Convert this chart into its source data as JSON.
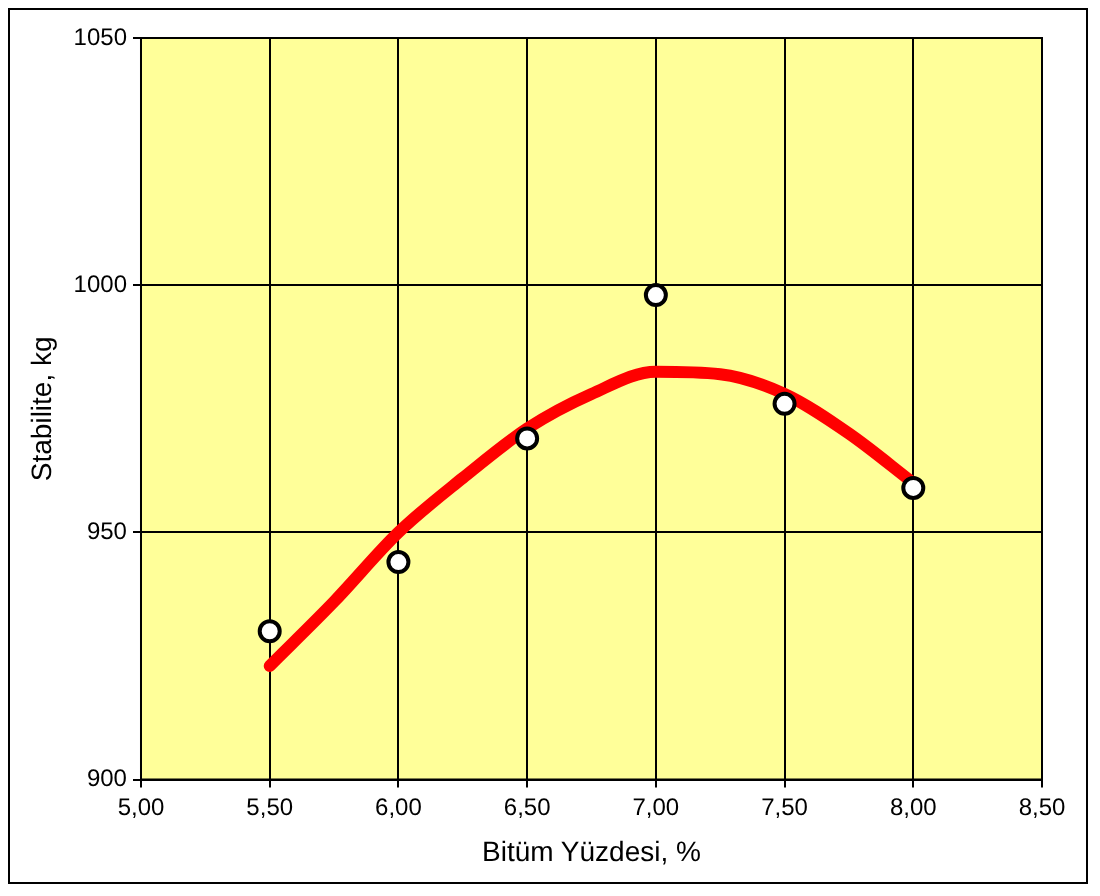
{
  "chart_data": {
    "type": "scatter",
    "xlabel": "Bitüm Yüzdesi, %",
    "ylabel": "Stabilite, kg",
    "xlim": [
      5,
      8.5
    ],
    "xticks": [
      {
        "value": 5,
        "label": "5,00"
      },
      {
        "value": 5.5,
        "label": "5,50"
      },
      {
        "value": 6,
        "label": "6,00"
      },
      {
        "value": 6.5,
        "label": "6,50"
      },
      {
        "value": 7,
        "label": "7,00"
      },
      {
        "value": 7.5,
        "label": "7,50"
      },
      {
        "value": 8,
        "label": "8,00"
      },
      {
        "value": 8.5,
        "label": "8,50"
      }
    ],
    "ylim": [
      900,
      1050
    ],
    "yticks": [
      900,
      950,
      1000,
      1050
    ],
    "grid": true,
    "legend": false,
    "marker": "circle",
    "series": [
      {
        "color": "#000000",
        "x": [
          5.5,
          6,
          6.5,
          7,
          7.5,
          8
        ],
        "values": [
          930,
          944,
          969,
          998,
          976,
          959
        ]
      },
      {
        "type": "line",
        "color": "#ff0000",
        "marker": "none",
        "line_style": "solid",
        "x": [
          5.5,
          5.75,
          6,
          6.25,
          6.5,
          6.75,
          7,
          7.25,
          7.5,
          7.75,
          8
        ],
        "values": [
          923,
          936,
          950,
          961,
          971,
          978,
          982.5,
          982,
          978,
          970,
          960
        ]
      }
    ]
  }
}
